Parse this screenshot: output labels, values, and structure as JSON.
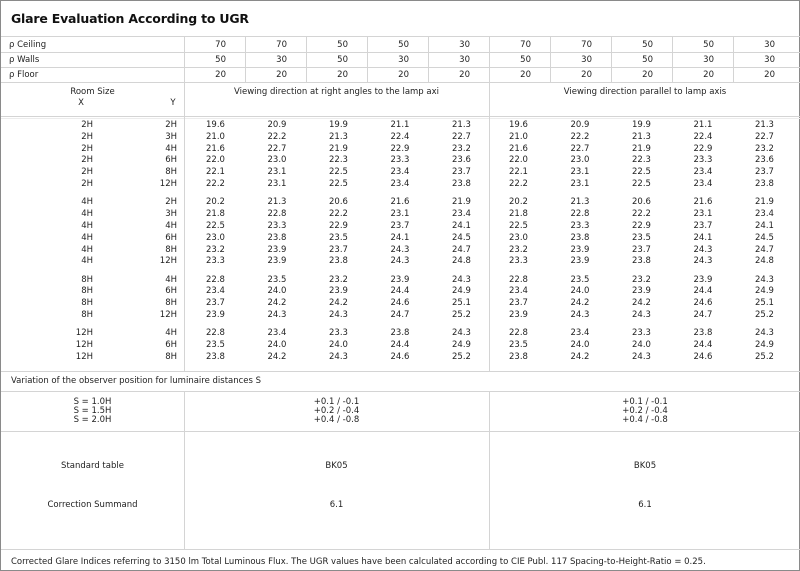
{
  "title": "Glare Evaluation According to UGR",
  "reflectances": [
    {
      "label": "ρ  Ceiling",
      "values": [
        "70",
        "70",
        "50",
        "50",
        "30",
        "70",
        "70",
        "50",
        "50",
        "30"
      ]
    },
    {
      "label": "ρ  Walls",
      "values": [
        "50",
        "30",
        "50",
        "30",
        "30",
        "50",
        "30",
        "50",
        "30",
        "30"
      ]
    },
    {
      "label": "ρ  Floor",
      "values": [
        "20",
        "20",
        "20",
        "20",
        "20",
        "20",
        "20",
        "20",
        "20",
        "20"
      ]
    }
  ],
  "header": {
    "room_size": "Room Size",
    "x": "X",
    "y": "Y",
    "perpendicular": "Viewing direction at right angles to the lamp axi",
    "parallel": "Viewing direction parallel to lamp axis"
  },
  "groups": [
    {
      "rows": [
        {
          "x": "2H",
          "y": "2H",
          "perp": [
            "19.6",
            "20.9",
            "19.9",
            "21.1",
            "21.3"
          ],
          "par": [
            "19.6",
            "20.9",
            "19.9",
            "21.1",
            "21.3"
          ]
        },
        {
          "x": "2H",
          "y": "3H",
          "perp": [
            "21.0",
            "22.2",
            "21.3",
            "22.4",
            "22.7"
          ],
          "par": [
            "21.0",
            "22.2",
            "21.3",
            "22.4",
            "22.7"
          ]
        },
        {
          "x": "2H",
          "y": "4H",
          "perp": [
            "21.6",
            "22.7",
            "21.9",
            "22.9",
            "23.2"
          ],
          "par": [
            "21.6",
            "22.7",
            "21.9",
            "22.9",
            "23.2"
          ]
        },
        {
          "x": "2H",
          "y": "6H",
          "perp": [
            "22.0",
            "23.0",
            "22.3",
            "23.3",
            "23.6"
          ],
          "par": [
            "22.0",
            "23.0",
            "22.3",
            "23.3",
            "23.6"
          ]
        },
        {
          "x": "2H",
          "y": "8H",
          "perp": [
            "22.1",
            "23.1",
            "22.5",
            "23.4",
            "23.7"
          ],
          "par": [
            "22.1",
            "23.1",
            "22.5",
            "23.4",
            "23.7"
          ]
        },
        {
          "x": "2H",
          "y": "12H",
          "perp": [
            "22.2",
            "23.1",
            "22.5",
            "23.4",
            "23.8"
          ],
          "par": [
            "22.2",
            "23.1",
            "22.5",
            "23.4",
            "23.8"
          ]
        }
      ]
    },
    {
      "rows": [
        {
          "x": "4H",
          "y": "2H",
          "perp": [
            "20.2",
            "21.3",
            "20.6",
            "21.6",
            "21.9"
          ],
          "par": [
            "20.2",
            "21.3",
            "20.6",
            "21.6",
            "21.9"
          ]
        },
        {
          "x": "4H",
          "y": "3H",
          "perp": [
            "21.8",
            "22.8",
            "22.2",
            "23.1",
            "23.4"
          ],
          "par": [
            "21.8",
            "22.8",
            "22.2",
            "23.1",
            "23.4"
          ]
        },
        {
          "x": "4H",
          "y": "4H",
          "perp": [
            "22.5",
            "23.3",
            "22.9",
            "23.7",
            "24.1"
          ],
          "par": [
            "22.5",
            "23.3",
            "22.9",
            "23.7",
            "24.1"
          ]
        },
        {
          "x": "4H",
          "y": "6H",
          "perp": [
            "23.0",
            "23.8",
            "23.5",
            "24.1",
            "24.5"
          ],
          "par": [
            "23.0",
            "23.8",
            "23.5",
            "24.1",
            "24.5"
          ]
        },
        {
          "x": "4H",
          "y": "8H",
          "perp": [
            "23.2",
            "23.9",
            "23.7",
            "24.3",
            "24.7"
          ],
          "par": [
            "23.2",
            "23.9",
            "23.7",
            "24.3",
            "24.7"
          ]
        },
        {
          "x": "4H",
          "y": "12H",
          "perp": [
            "23.3",
            "23.9",
            "23.8",
            "24.3",
            "24.8"
          ],
          "par": [
            "23.3",
            "23.9",
            "23.8",
            "24.3",
            "24.8"
          ]
        }
      ]
    },
    {
      "rows": [
        {
          "x": "8H",
          "y": "4H",
          "perp": [
            "22.8",
            "23.5",
            "23.2",
            "23.9",
            "24.3"
          ],
          "par": [
            "22.8",
            "23.5",
            "23.2",
            "23.9",
            "24.3"
          ]
        },
        {
          "x": "8H",
          "y": "6H",
          "perp": [
            "23.4",
            "24.0",
            "23.9",
            "24.4",
            "24.9"
          ],
          "par": [
            "23.4",
            "24.0",
            "23.9",
            "24.4",
            "24.9"
          ]
        },
        {
          "x": "8H",
          "y": "8H",
          "perp": [
            "23.7",
            "24.2",
            "24.2",
            "24.6",
            "25.1"
          ],
          "par": [
            "23.7",
            "24.2",
            "24.2",
            "24.6",
            "25.1"
          ]
        },
        {
          "x": "8H",
          "y": "12H",
          "perp": [
            "23.9",
            "24.3",
            "24.3",
            "24.7",
            "25.2"
          ],
          "par": [
            "23.9",
            "24.3",
            "24.3",
            "24.7",
            "25.2"
          ]
        }
      ]
    },
    {
      "rows": [
        {
          "x": "12H",
          "y": "4H",
          "perp": [
            "22.8",
            "23.4",
            "23.3",
            "23.8",
            "24.3"
          ],
          "par": [
            "22.8",
            "23.4",
            "23.3",
            "23.8",
            "24.3"
          ]
        },
        {
          "x": "12H",
          "y": "6H",
          "perp": [
            "23.5",
            "24.0",
            "24.0",
            "24.4",
            "24.9"
          ],
          "par": [
            "23.5",
            "24.0",
            "24.0",
            "24.4",
            "24.9"
          ]
        },
        {
          "x": "12H",
          "y": "8H",
          "perp": [
            "23.8",
            "24.2",
            "24.3",
            "24.6",
            "25.2"
          ],
          "par": [
            "23.8",
            "24.2",
            "24.3",
            "24.6",
            "25.2"
          ]
        }
      ]
    }
  ],
  "variation": {
    "title": "Variation of the observer position for luminaire distances S",
    "labels": [
      "S = 1.0H",
      "S = 1.5H",
      "S = 2.0H"
    ],
    "perp": [
      "+0.1 / -0.1",
      "+0.2 / -0.4",
      "+0.4 / -0.8"
    ],
    "par": [
      "+0.1 / -0.1",
      "+0.2 / -0.4",
      "+0.4 / -0.8"
    ]
  },
  "standard_table": {
    "label": "Standard table",
    "perp": "BK05",
    "par": "BK05"
  },
  "correction": {
    "label": "Correction Summand",
    "perp": "6.1",
    "par": "6.1"
  },
  "footer": "Corrected Glare Indices referring to 3150 lm Total Luminous Flux. The UGR values have been calculated according to CIE Publ. 117    Spacing-to-Height-Ratio = 0.25."
}
